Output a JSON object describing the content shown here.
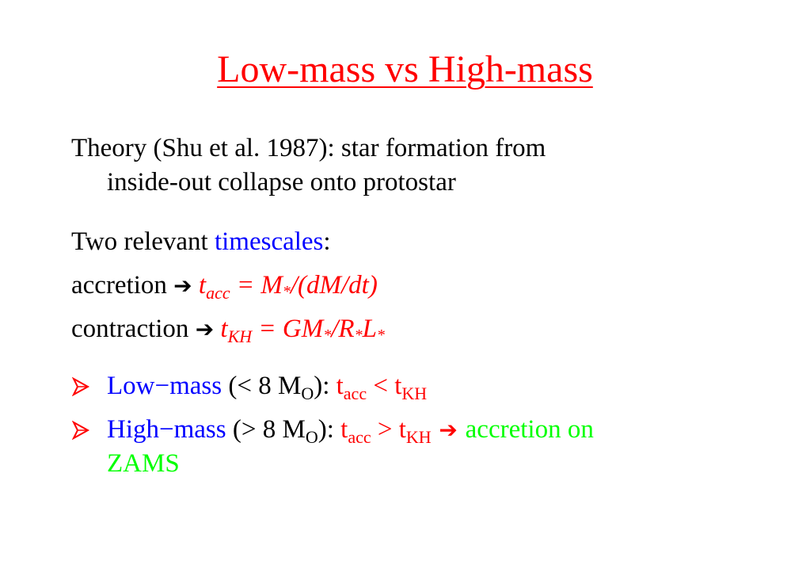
{
  "slide": {
    "title": "Low-mass vs High-mass",
    "theory": {
      "line1": "Theory (Shu et al. 1987): star formation from",
      "line2": "inside-out collapse onto protostar"
    },
    "timescales": {
      "prefix": "Two relevant ",
      "word": "timescales",
      "suffix": ":"
    },
    "accretion": {
      "label": "accretion ",
      "arrow": "➔",
      "t": " t",
      "sub": "acc",
      "eq": "  =  M",
      "star": "*",
      "rest": "/(dM/dt)"
    },
    "contraction": {
      "label": "contraction ",
      "arrow": "➔",
      "t": " t",
      "sub": "KH",
      "eq": "  =  GM",
      "star1": "*",
      "mid": "/R",
      "star2": "*",
      "l": "L",
      "star3": "*"
    },
    "bullet1": {
      "term": "Low−mass",
      "cond_open": " (< 8 M",
      "cond_sub": "O",
      "cond_close": "): ",
      "t1": "t",
      "t1_sub": "acc",
      "op": " < ",
      "t2": "t",
      "t2_sub": "KH"
    },
    "bullet2": {
      "term": "High−mass",
      "cond_open": " (> 8 M",
      "cond_sub": "O",
      "cond_close": "): ",
      "t1": "t",
      "t1_sub": "acc",
      "op": " > ",
      "t2": "t",
      "t2_sub": "KH",
      "arrow": " ➔ ",
      "result1": "accretion on",
      "result2": "ZAMS"
    }
  },
  "colors": {
    "title": "#ff0000",
    "highlight_blue": "#0000ff",
    "formula_red": "#ff0000",
    "result_green": "#00ff00"
  },
  "icons": {
    "bullet": "arrowhead-bullet-icon"
  }
}
